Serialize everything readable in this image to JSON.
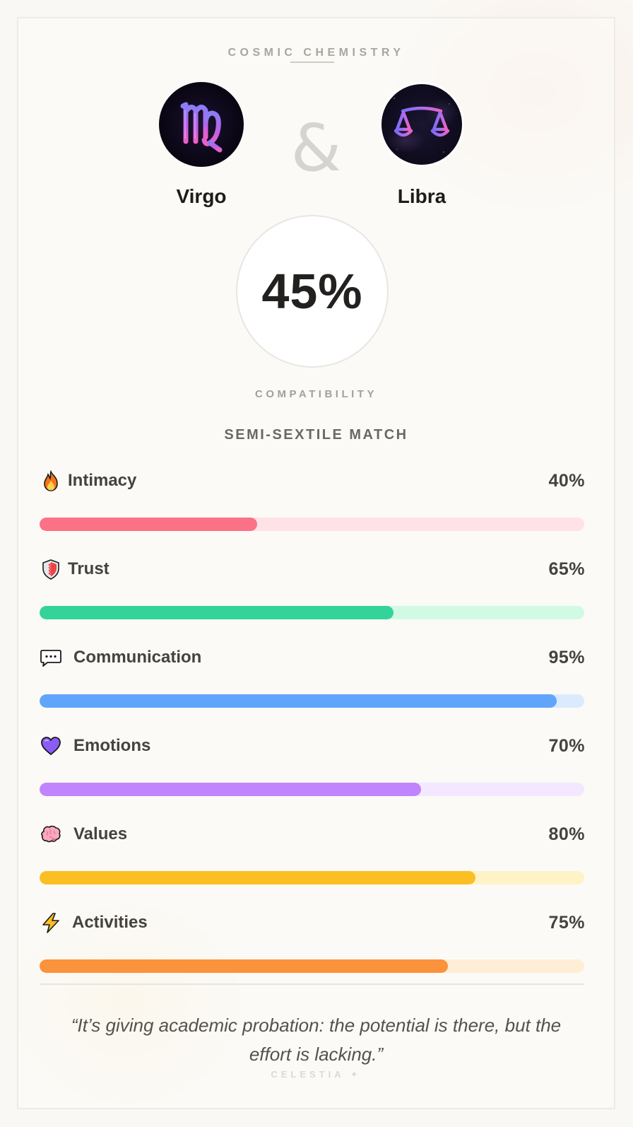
{
  "header": {
    "title": "COSMIC CHEMISTRY"
  },
  "signs": [
    {
      "name": "Virgo",
      "icon": "virgo-symbol-icon"
    },
    {
      "name": "Libra",
      "icon": "libra-scales-icon"
    }
  ],
  "connector": "&",
  "score": {
    "value": "45%",
    "label": "COMPATIBILITY"
  },
  "match_type": "SEMI-SEXTILE MATCH",
  "metrics": [
    {
      "label": "Intimacy",
      "percent": 40,
      "percent_text": "40%",
      "icon": "fire-icon",
      "fill_color": "#fb7185",
      "track_color": "#ffe2e7"
    },
    {
      "label": "Trust",
      "percent": 65,
      "percent_text": "65%",
      "icon": "shield-icon",
      "fill_color": "#34d399",
      "track_color": "#d1fae5"
    },
    {
      "label": "Communication",
      "percent": 95,
      "percent_text": "95%",
      "icon": "speech-bubble-icon",
      "fill_color": "#60a5fa",
      "track_color": "#dbeafe"
    },
    {
      "label": "Emotions",
      "percent": 70,
      "percent_text": "70%",
      "icon": "purple-heart-icon",
      "fill_color": "#c084fc",
      "track_color": "#f3e8ff"
    },
    {
      "label": "Values",
      "percent": 80,
      "percent_text": "80%",
      "icon": "brain-icon",
      "fill_color": "#fbbf24",
      "track_color": "#fef3c7"
    },
    {
      "label": "Activities",
      "percent": 75,
      "percent_text": "75%",
      "icon": "lightning-icon",
      "fill_color": "#fb923c",
      "track_color": "#ffedd5"
    }
  ],
  "quote": "“It’s giving academic probation: the potential is there, but the effort is lacking.”",
  "brand": "CELESTIA ✦"
}
